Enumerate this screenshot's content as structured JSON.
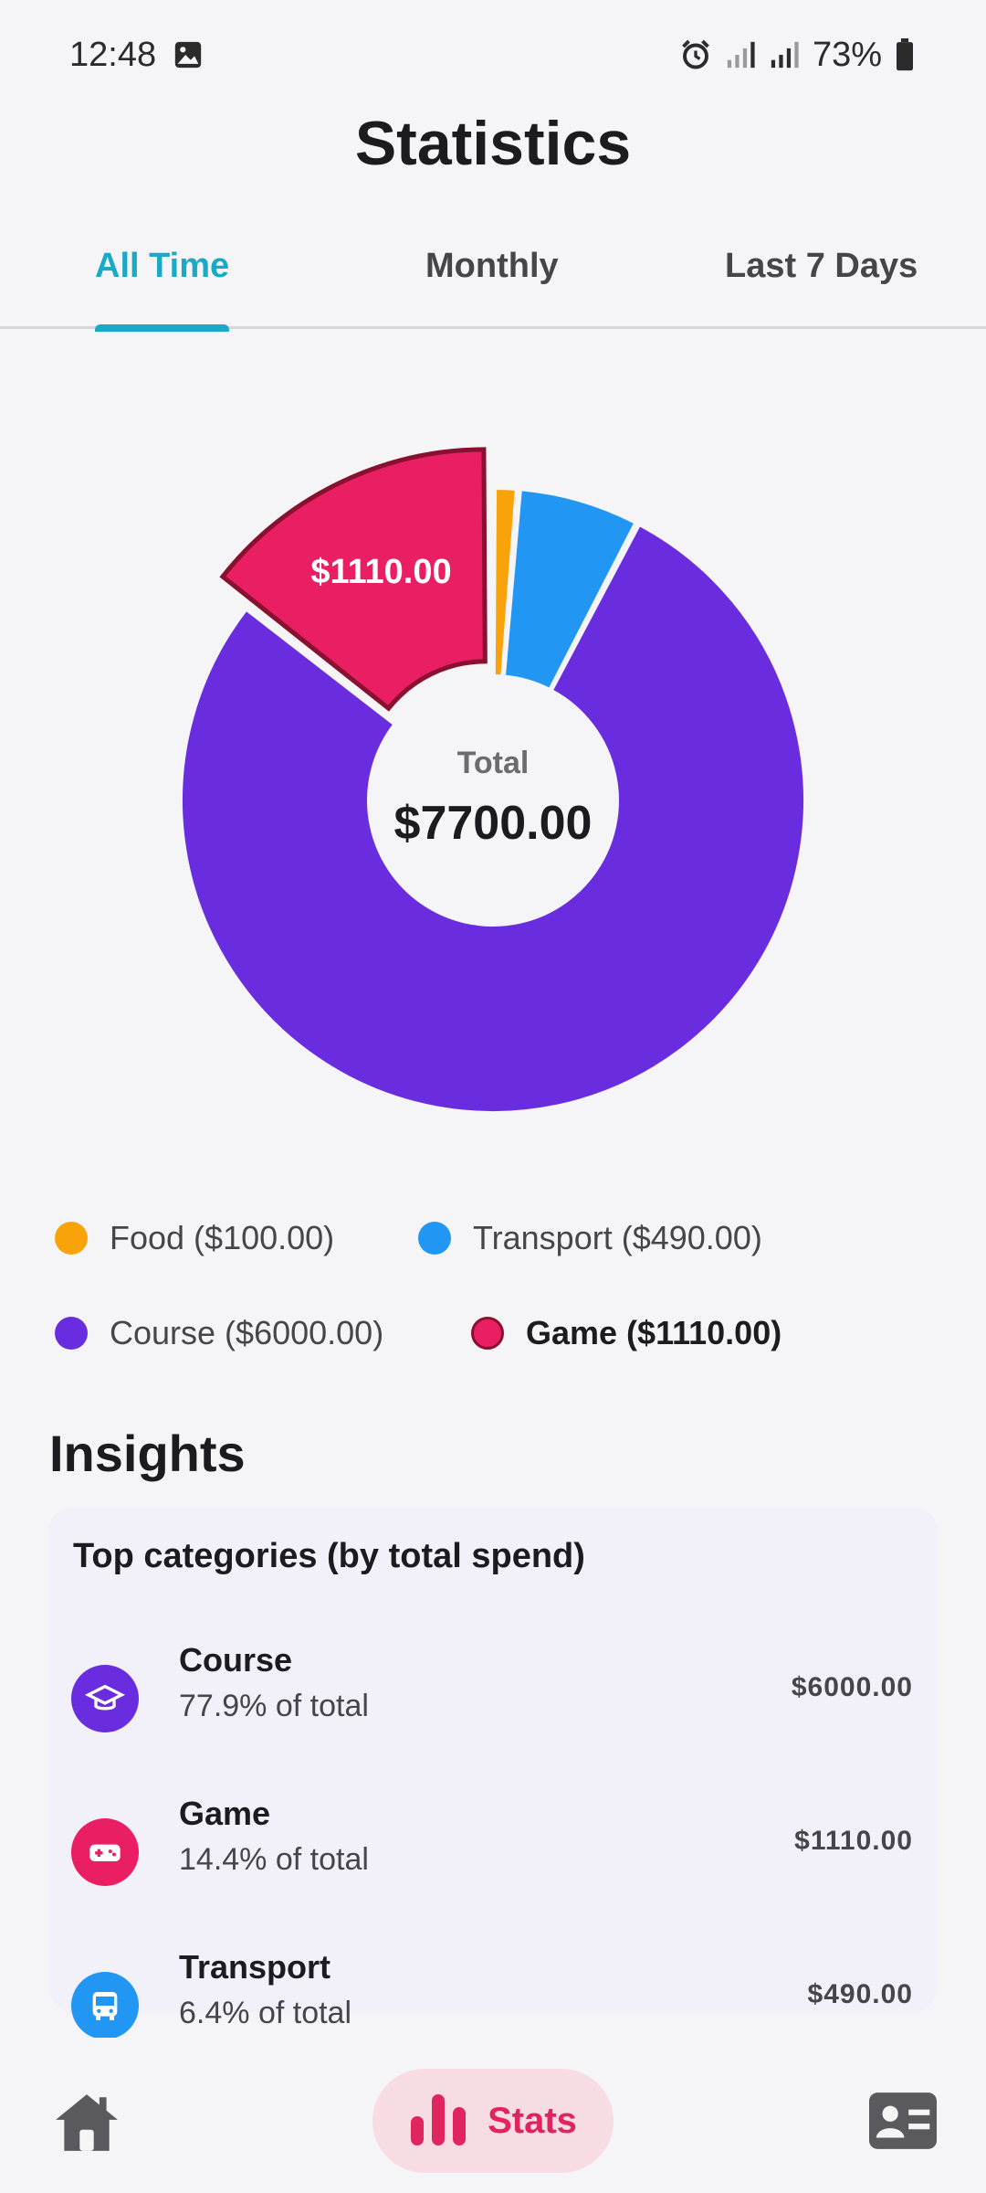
{
  "status_bar": {
    "time": "12:48",
    "battery": "73%"
  },
  "title": "Statistics",
  "tabs": [
    {
      "label": "All Time",
      "active": true
    },
    {
      "label": "Monthly",
      "active": false
    },
    {
      "label": "Last 7 Days",
      "active": false
    }
  ],
  "chart_data": {
    "type": "pie",
    "categories": [
      "Food",
      "Transport",
      "Course",
      "Game"
    ],
    "values": [
      100,
      490,
      6000,
      1110
    ],
    "colors": [
      "#f9a30a",
      "#2196f3",
      "#6a2cdf",
      "#e91e63"
    ],
    "selected": "Game",
    "selected_label": "$1110.00",
    "center_label": "Total",
    "center_value": "$7700.00"
  },
  "legend": [
    {
      "label": "Food ($100.00)",
      "color": "#f9a30a"
    },
    {
      "label": "Transport ($490.00)",
      "color": "#2196f3"
    },
    {
      "label": "Course ($6000.00)",
      "color": "#6a2cdf"
    },
    {
      "label": "Game ($1110.00)",
      "color": "#e91e63"
    }
  ],
  "insights": {
    "heading": "Insights",
    "card_title": "Top categories (by total spend)",
    "items": [
      {
        "name": "Course",
        "share": "77.9% of total",
        "amount": "$6000.00",
        "color": "#6a2cdf",
        "icon": "graduation-cap-icon"
      },
      {
        "name": "Game",
        "share": "14.4% of total",
        "amount": "$1110.00",
        "color": "#e91e63",
        "icon": "gamepad-icon"
      },
      {
        "name": "Transport",
        "share": "6.4% of total",
        "amount": "$490.00",
        "color": "#2196f3",
        "icon": "bus-icon"
      }
    ]
  },
  "bottom_nav": {
    "stats_label": "Stats"
  }
}
